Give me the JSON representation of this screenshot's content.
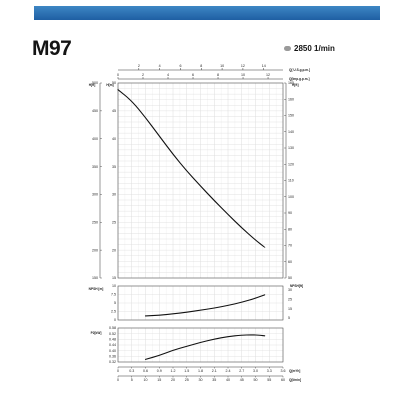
{
  "header": {
    "model": "M97",
    "speed": "2850 1/min"
  },
  "chart_data": [
    {
      "type": "line",
      "name": "head",
      "top_axis_1": {
        "label": "Q[ U.S.g.p.m.]",
        "ticks": [
          "2",
          "4",
          "6",
          "8",
          "10",
          "12",
          "14"
        ],
        "values": [
          2,
          4,
          6,
          8,
          10,
          12,
          14
        ]
      },
      "top_axis_2": {
        "label": "Q[Imp.g.p.m.]",
        "ticks": [
          "0",
          "2",
          "4",
          "6",
          "8",
          "10",
          "12"
        ],
        "values": [
          0,
          2,
          4,
          6,
          8,
          10,
          12
        ]
      },
      "left_axis_1": {
        "label": "H[ft]",
        "ticks": [
          "500",
          "450",
          "400",
          "350",
          "300",
          "250",
          "200",
          "150"
        ]
      },
      "left_axis_2": {
        "label": "H[m]",
        "ticks": [
          "50",
          "45",
          "40",
          "35",
          "30",
          "25",
          "20",
          "15"
        ],
        "ylim": [
          15,
          50
        ]
      },
      "right_axis": {
        "label": "H[ft]",
        "ticks": [
          "165",
          "160",
          "150",
          "140",
          "130",
          "120",
          "110",
          "100",
          "90",
          "80",
          "70",
          "60",
          "50"
        ]
      },
      "xlim": [
        0,
        3.6
      ],
      "grid": true,
      "x": [
        0,
        0.3,
        0.6,
        0.9,
        1.2,
        1.5,
        1.8,
        2.1,
        2.4,
        2.7,
        3.0,
        3.2
      ],
      "y": [
        48.8,
        46.8,
        43.8,
        40.5,
        37.2,
        34.2,
        31.5,
        28.9,
        26.4,
        24.0,
        21.8,
        20.5
      ]
    },
    {
      "type": "line",
      "name": "npsh",
      "left_label": "NPSH [m]",
      "right_label": "NPSH[ft]",
      "left_ticks": [
        "10",
        "7.5",
        "5",
        "2.5",
        "0"
      ],
      "right_ticks": [
        "30",
        "25",
        "15",
        "5"
      ],
      "ylim": [
        0,
        10
      ],
      "xlim": [
        0,
        3.6
      ],
      "x": [
        0.6,
        0.9,
        1.2,
        1.5,
        1.8,
        2.1,
        2.4,
        2.7,
        3.0,
        3.2
      ],
      "y": [
        1.2,
        1.4,
        1.8,
        2.3,
        2.9,
        3.5,
        4.3,
        5.2,
        6.4,
        7.4
      ]
    },
    {
      "type": "line",
      "name": "power",
      "left_label": "P2[kW]",
      "left_ticks": [
        "0.58",
        "0.52",
        "0.48",
        "0.44",
        "0.40",
        "0.36",
        "0.32"
      ],
      "ylim": [
        0.32,
        0.58
      ],
      "xlim": [
        0,
        3.6
      ],
      "x": [
        0.6,
        0.9,
        1.2,
        1.5,
        1.8,
        2.1,
        2.4,
        2.7,
        2.9,
        3.1,
        3.2
      ],
      "y": [
        0.34,
        0.37,
        0.41,
        0.44,
        0.47,
        0.495,
        0.515,
        0.525,
        0.528,
        0.525,
        0.52
      ]
    }
  ],
  "bottom_axis_1": {
    "label": "Q[m³/h]",
    "ticks": [
      "0",
      "0.3",
      "0.6",
      "0.9",
      "1.2",
      "1.5",
      "1.8",
      "2.1",
      "2.4",
      "2.7",
      "3.0",
      "3.3",
      "3.6"
    ],
    "values": [
      0,
      0.3,
      0.6,
      0.9,
      1.2,
      1.5,
      1.8,
      2.1,
      2.4,
      2.7,
      3.0,
      3.3,
      3.6
    ]
  },
  "bottom_axis_2": {
    "label": "Q[l/min]",
    "ticks": [
      "0",
      "5",
      "10",
      "15",
      "20",
      "25",
      "30",
      "35",
      "40",
      "45",
      "50",
      "55",
      "60"
    ],
    "values": [
      0,
      5,
      10,
      15,
      20,
      25,
      30,
      35,
      40,
      45,
      50,
      55,
      60
    ]
  }
}
